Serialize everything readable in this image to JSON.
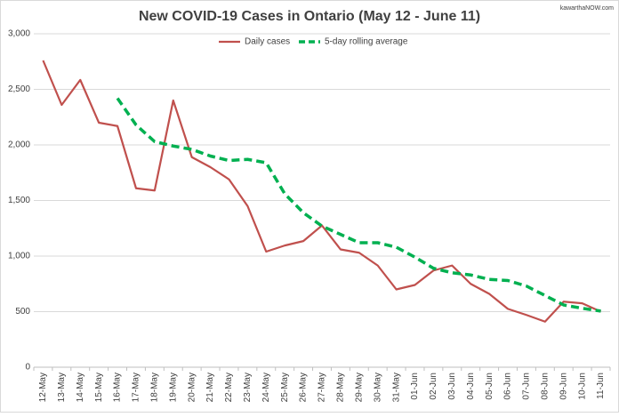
{
  "chart_data": {
    "type": "line",
    "title": "New COVID-19 Cases in Ontario (May 12 - June 11)",
    "watermark": "kawarthaNOW.com",
    "categories": [
      "12-May",
      "13-May",
      "14-May",
      "15-May",
      "16-May",
      "17-May",
      "18-May",
      "19-May",
      "20-May",
      "21-May",
      "22-May",
      "23-May",
      "24-May",
      "25-May",
      "26-May",
      "27-May",
      "28-May",
      "29-May",
      "30-May",
      "31-May",
      "01-Jun",
      "02-Jun",
      "03-Jun",
      "04-Jun",
      "05-Jun",
      "06-Jun",
      "07-Jun",
      "08-Jun",
      "09-Jun",
      "10-Jun",
      "11-Jun"
    ],
    "series": [
      {
        "name": "Daily cases",
        "color": "#c0504d",
        "dashed": false,
        "values": [
          2760,
          2360,
          2585,
          2200,
          2170,
          1610,
          1590,
          2400,
          1890,
          1800,
          1690,
          1450,
          1040,
          1095,
          1135,
          1275,
          1060,
          1030,
          915,
          700,
          740,
          870,
          915,
          750,
          660,
          525,
          470,
          410,
          590,
          575,
          500
        ]
      },
      {
        "name": "5-day rolling average",
        "color": "#00b050",
        "dashed": true,
        "values": [
          null,
          null,
          null,
          null,
          2420,
          2180,
          2030,
          1990,
          1960,
          1900,
          1860,
          1870,
          1840,
          1560,
          1390,
          1270,
          1195,
          1120,
          1120,
          1080,
          990,
          890,
          850,
          830,
          790,
          780,
          730,
          645,
          560,
          530,
          505
        ]
      }
    ],
    "ylim": [
      0,
      3000
    ],
    "yticks": [
      0,
      500,
      {
        "value": 1000,
        "label": "1,000"
      },
      {
        "value": 1500,
        "label": "1,500"
      },
      {
        "value": 2000,
        "label": "2,000"
      },
      {
        "value": 2500,
        "label": "2,500"
      },
      {
        "value": 3000,
        "label": "3,000"
      }
    ],
    "grid": true,
    "legend": "top"
  }
}
